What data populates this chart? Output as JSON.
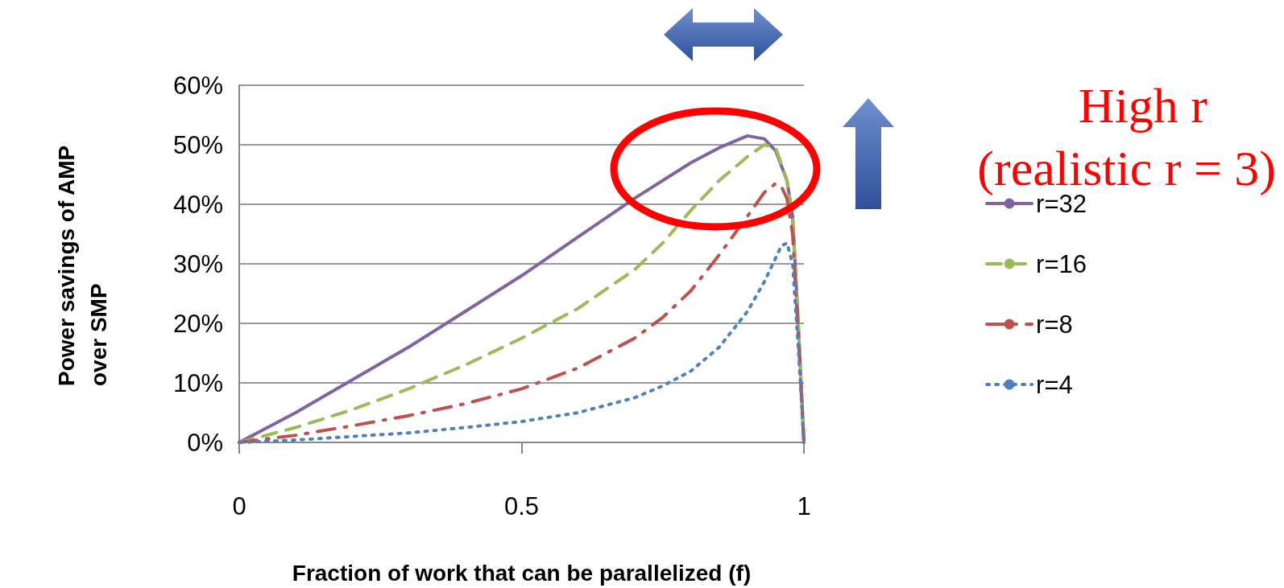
{
  "chart_data": {
    "type": "line",
    "xlabel": "Fraction of work that can be parallelized (f)",
    "ylabel": "Power savings of AMP over SMP",
    "xlim": [
      0,
      1
    ],
    "xticks": [
      0,
      0.5,
      1
    ],
    "ylim": [
      0,
      60
    ],
    "yticks": [
      {
        "value": 0,
        "label": "0%"
      },
      {
        "value": 10,
        "label": "10%"
      },
      {
        "value": 20,
        "label": "20%"
      },
      {
        "value": 30,
        "label": "30%"
      },
      {
        "value": 40,
        "label": "40%"
      },
      {
        "value": 50,
        "label": "50%"
      },
      {
        "value": 60,
        "label": "60%"
      }
    ],
    "grid": "y",
    "legend": "right",
    "marker": "none",
    "series": [
      {
        "name": "r=32",
        "color": "#8064a2",
        "line_style": "solid",
        "x": [
          0,
          0.1,
          0.2,
          0.3,
          0.4,
          0.5,
          0.6,
          0.7,
          0.8,
          0.85,
          0.9,
          0.93,
          0.95,
          0.97,
          0.98,
          0.99,
          1
        ],
        "values": [
          0,
          5,
          10.5,
          16,
          22,
          28,
          34.5,
          41,
          47,
          49.5,
          51.5,
          51,
          49,
          44,
          38,
          20,
          0
        ]
      },
      {
        "name": "r=16",
        "color": "#9bbb59",
        "line_style": "dashed",
        "x": [
          0,
          0.1,
          0.2,
          0.3,
          0.4,
          0.5,
          0.6,
          0.7,
          0.75,
          0.8,
          0.85,
          0.9,
          0.93,
          0.95,
          0.97,
          0.98,
          0.99,
          1
        ],
        "values": [
          0,
          2.5,
          5.5,
          9,
          13,
          17.5,
          22.5,
          29,
          33.5,
          39,
          44,
          48,
          50,
          49.5,
          44,
          38,
          20,
          0
        ]
      },
      {
        "name": "r=8",
        "color": "#c0504d",
        "line_style": "dashdot",
        "x": [
          0,
          0.1,
          0.2,
          0.3,
          0.4,
          0.5,
          0.6,
          0.7,
          0.75,
          0.8,
          0.85,
          0.9,
          0.93,
          0.95,
          0.96,
          0.97,
          0.98,
          0.99,
          1
        ],
        "values": [
          0,
          1.2,
          2.8,
          4.5,
          6.5,
          9,
          12.5,
          17.5,
          21,
          25.5,
          31.5,
          38,
          42,
          43.5,
          43,
          41,
          35,
          18,
          0
        ]
      },
      {
        "name": "r=4",
        "color": "#4f81bd",
        "line_style": "dotted",
        "x": [
          0,
          0.1,
          0.2,
          0.3,
          0.4,
          0.5,
          0.6,
          0.7,
          0.75,
          0.8,
          0.85,
          0.9,
          0.93,
          0.95,
          0.96,
          0.97,
          0.98,
          0.99,
          1
        ],
        "values": [
          0,
          0.4,
          1,
          1.6,
          2.5,
          3.5,
          5,
          7.5,
          9.5,
          12,
          16,
          22,
          27,
          31,
          33,
          33.5,
          30,
          16,
          0
        ]
      }
    ],
    "annotations": [
      "High r",
      "(realistic r = 3)"
    ]
  }
}
